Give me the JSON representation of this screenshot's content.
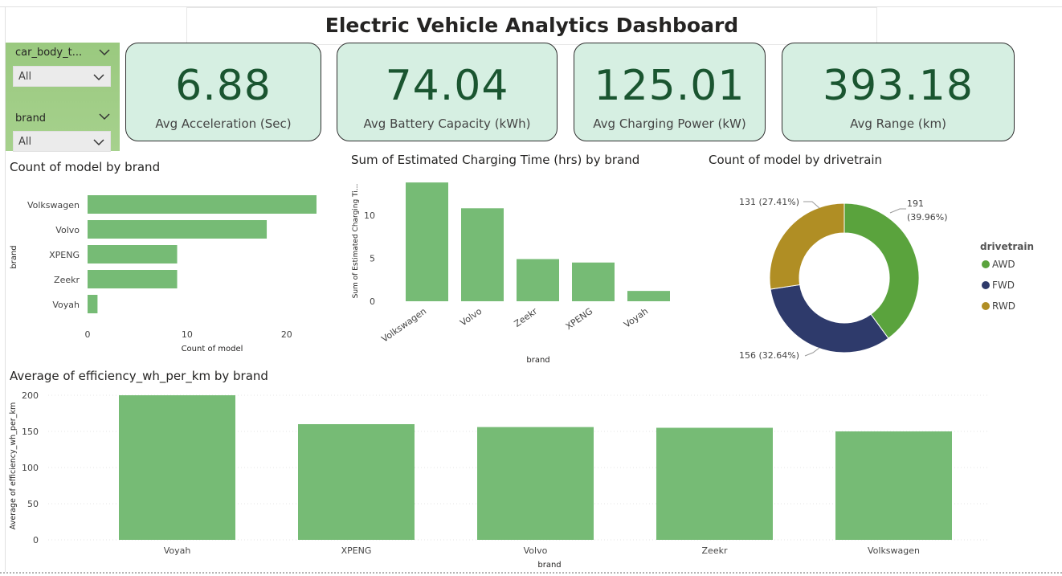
{
  "title": "Electric Vehicle Analytics Dashboard",
  "slicers": [
    {
      "label": "car_body_t...",
      "value": "All"
    },
    {
      "label": "brand",
      "value": "All"
    }
  ],
  "kpis": [
    {
      "value": "6.88",
      "label": "Avg Acceleration (Sec)"
    },
    {
      "value": "74.04",
      "label": "Avg Battery Capacity (kWh)"
    },
    {
      "value": "125.01",
      "label": "Avg Charging Power (kW)"
    },
    {
      "value": "393.18",
      "label": "Avg Range (km)"
    }
  ],
  "colors": {
    "bar": "#76bb75",
    "kpi_bg": "#d6efe2",
    "kpi_text": "#1a5530",
    "slicer_bg": "#9ac97f",
    "awd": "#5aa33d",
    "fwd": "#2e3a6b",
    "rwd": "#b08e24"
  },
  "chart_data": [
    {
      "type": "bar",
      "orientation": "horizontal",
      "title": "Count of model by brand",
      "xlabel": "Count of model",
      "ylabel": "brand",
      "categories": [
        "Volkswagen",
        "Volvo",
        "XPENG",
        "Zeekr",
        "Voyah"
      ],
      "values": [
        23,
        18,
        9,
        9,
        1
      ],
      "xticks": [
        "0",
        "10",
        "20"
      ],
      "xlim": [
        0,
        23
      ]
    },
    {
      "type": "bar",
      "title": "Sum of Estimated Charging Time (hrs) by brand",
      "xlabel": "brand",
      "ylabel": "Sum of Estimated Charging Ti...",
      "categories": [
        "Volkswagen",
        "Volvo",
        "Zeekr",
        "XPENG",
        "Voyah"
      ],
      "values": [
        13.8,
        10.8,
        4.9,
        4.5,
        1.2
      ],
      "yticks": [
        "0",
        "5",
        "10"
      ],
      "ylim": [
        0,
        14
      ]
    },
    {
      "type": "pie",
      "title": "Count of model by drivetrain",
      "legend_title": "drivetrain",
      "legend_position": "right",
      "series": [
        {
          "name": "AWD",
          "value": 191,
          "label": "191\n(39.96%)",
          "label_line1": "191",
          "label_line2": "(39.96%)"
        },
        {
          "name": "FWD",
          "value": 156,
          "label": "156 (32.64%)"
        },
        {
          "name": "RWD",
          "value": 131,
          "label": "131 (27.41%)"
        }
      ]
    },
    {
      "type": "bar",
      "title": "Average of efficiency_wh_per_km by brand",
      "xlabel": "brand",
      "ylabel": "Average of efficiency_wh_per_km",
      "categories": [
        "Voyah",
        "XPENG",
        "Volvo",
        "Zeekr",
        "Volkswagen"
      ],
      "values": [
        200,
        160,
        156,
        155,
        150
      ],
      "yticks": [
        "0",
        "50",
        "100",
        "150",
        "200"
      ],
      "ylim": [
        0,
        200
      ]
    }
  ]
}
